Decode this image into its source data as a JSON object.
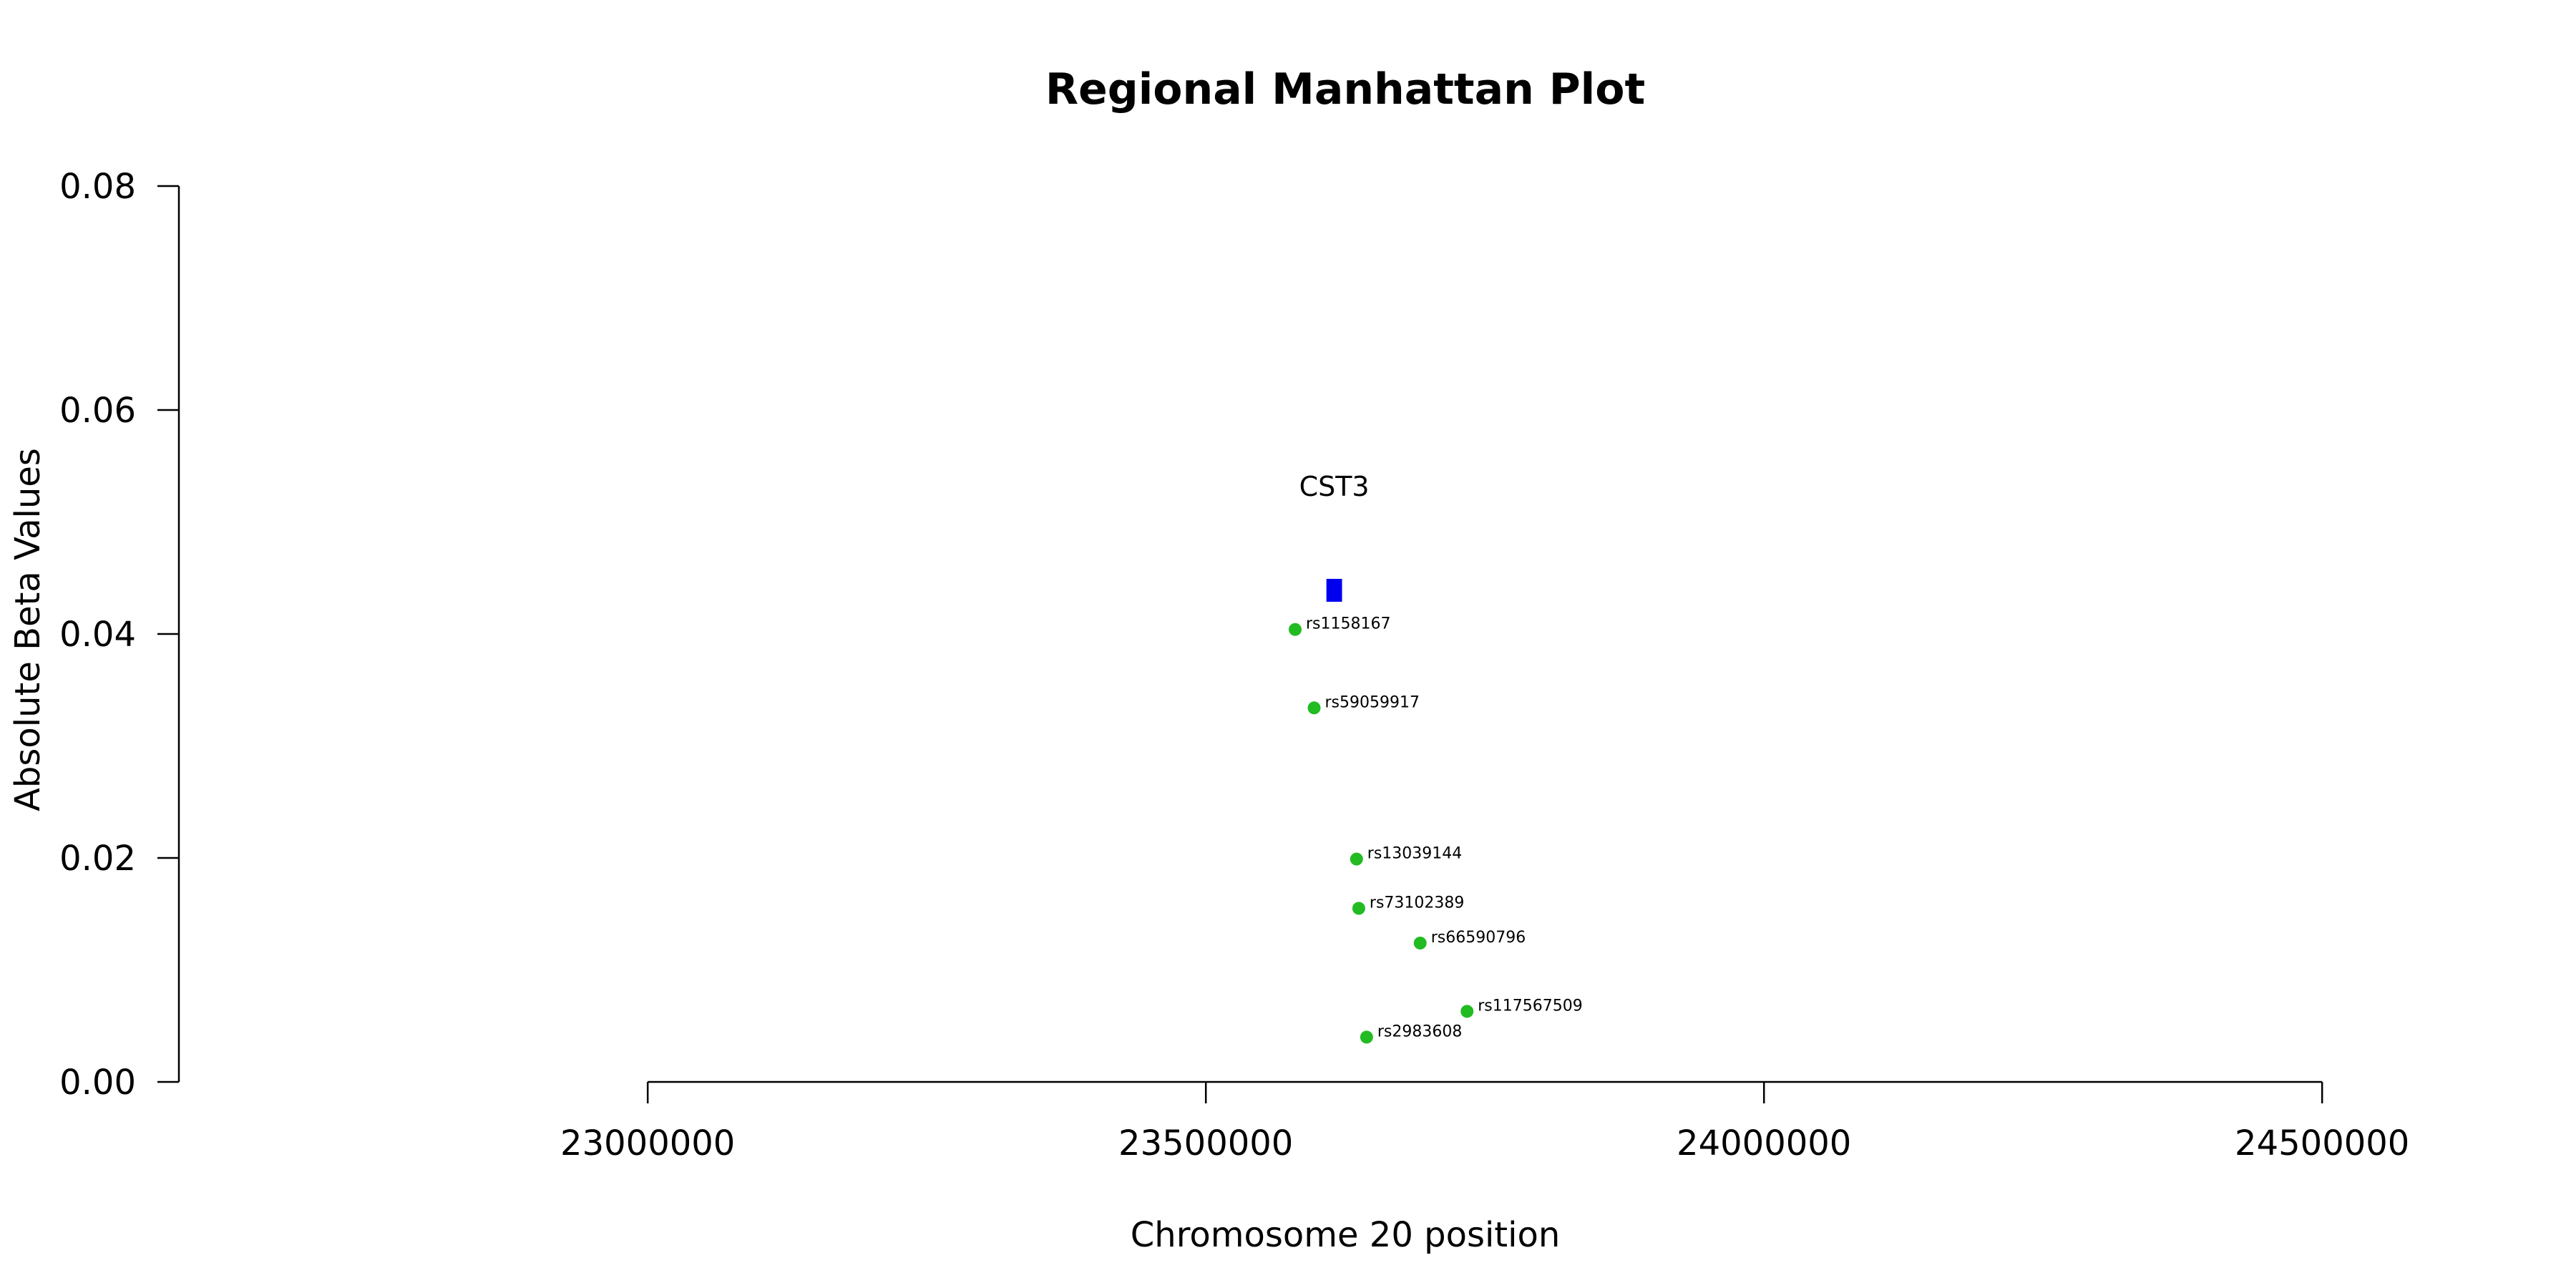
{
  "chart_data": {
    "type": "scatter",
    "title": "Regional Manhattan Plot",
    "xlabel": "Chromosome 20 position",
    "ylabel": "Absolute Beta Values",
    "xlim": [
      22580000,
      24580000
    ],
    "ylim": [
      0.0,
      0.08
    ],
    "x_ticks": [
      23000000,
      23500000,
      24000000,
      24500000
    ],
    "x_tick_labels": [
      "23000000",
      "23500000",
      "24000000",
      "24500000"
    ],
    "y_ticks": [
      0.0,
      0.02,
      0.04,
      0.06,
      0.08
    ],
    "y_tick_labels": [
      "0.00",
      "0.02",
      "0.04",
      "0.06",
      "0.08"
    ],
    "grid": false,
    "colors": {
      "snp": "#22bb22",
      "gene": "#0000ee"
    },
    "points": [
      {
        "label": "rs1158167",
        "x": 23580000,
        "y": 0.0404
      },
      {
        "label": "rs59059917",
        "x": 23597000,
        "y": 0.0334
      },
      {
        "label": "rs13039144",
        "x": 23635000,
        "y": 0.0199
      },
      {
        "label": "rs73102389",
        "x": 23637000,
        "y": 0.0155
      },
      {
        "label": "rs66590796",
        "x": 23692000,
        "y": 0.0124
      },
      {
        "label": "rs117567509",
        "x": 23734000,
        "y": 0.0063
      },
      {
        "label": "rs2983608",
        "x": 23644000,
        "y": 0.004
      }
    ],
    "genes": [
      {
        "name": "CST3",
        "start": 23608000,
        "end": 23622000,
        "y": 0.0439
      }
    ]
  }
}
